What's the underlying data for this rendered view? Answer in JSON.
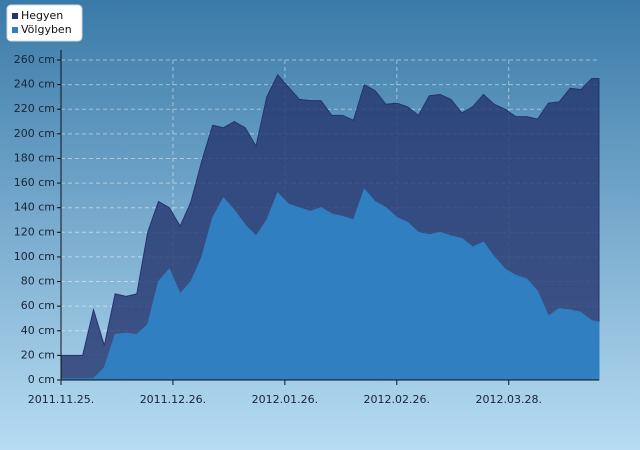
{
  "chart_data": {
    "type": "area",
    "x": [
      "2011-11-25",
      "2011-11-28",
      "2011-12-01",
      "2011-12-04",
      "2011-12-07",
      "2011-12-10",
      "2011-12-13",
      "2011-12-16",
      "2011-12-19",
      "2011-12-22",
      "2011-12-25",
      "2011-12-28",
      "2011-12-31",
      "2012-01-03",
      "2012-01-06",
      "2012-01-09",
      "2012-01-12",
      "2012-01-15",
      "2012-01-18",
      "2012-01-21",
      "2012-01-24",
      "2012-01-27",
      "2012-01-30",
      "2012-02-02",
      "2012-02-05",
      "2012-02-08",
      "2012-02-11",
      "2012-02-14",
      "2012-02-17",
      "2012-02-20",
      "2012-02-23",
      "2012-02-26",
      "2012-02-29",
      "2012-03-03",
      "2012-03-06",
      "2012-03-09",
      "2012-03-12",
      "2012-03-15",
      "2012-03-18",
      "2012-03-21",
      "2012-03-24",
      "2012-03-27",
      "2012-03-30",
      "2012-04-02",
      "2012-04-05",
      "2012-04-08",
      "2012-04-11",
      "2012-04-14",
      "2012-04-17",
      "2012-04-20",
      "2012-04-22"
    ],
    "series": [
      {
        "name": "Hegyen",
        "color": "#24346e",
        "values": [
          20,
          20,
          20,
          57,
          28,
          70,
          68,
          70,
          120,
          145,
          140,
          125,
          145,
          178,
          207,
          205,
          210,
          205,
          190,
          230,
          248,
          238,
          228,
          227,
          227,
          215,
          215,
          211,
          240,
          235,
          224,
          225,
          222,
          215,
          231,
          232,
          228,
          217,
          222,
          232,
          224,
          220,
          214,
          214,
          212,
          225,
          226,
          237,
          236,
          245,
          245
        ]
      },
      {
        "name": "Völgyben",
        "color": "#2f7fc1",
        "values": [
          1,
          1,
          1,
          1,
          10,
          37,
          38,
          37,
          45,
          80,
          90,
          70,
          80,
          100,
          132,
          148,
          138,
          126,
          117,
          130,
          152,
          143,
          140,
          137,
          140,
          135,
          133,
          130,
          155,
          145,
          140,
          132,
          128,
          120,
          118,
          120,
          117,
          115,
          108,
          112,
          100,
          90,
          85,
          82,
          72,
          52,
          58,
          57,
          55,
          48,
          47
        ]
      }
    ],
    "xlim": [
      "2011-11-25",
      "2012-04-22"
    ],
    "xticks": [
      {
        "value": "2011-11-25",
        "label": "2011.11.25."
      },
      {
        "value": "2011-12-26",
        "label": "2011.12.26."
      },
      {
        "value": "2012-01-26",
        "label": "2012.01.26."
      },
      {
        "value": "2012-02-26",
        "label": "2012.02.26."
      },
      {
        "value": "2012-03-28",
        "label": "2012.03.28."
      }
    ],
    "ylim": [
      0,
      260
    ],
    "yticks": [
      {
        "value": 0,
        "label": "0 cm"
      },
      {
        "value": 20,
        "label": "20 cm"
      },
      {
        "value": 40,
        "label": "40 cm"
      },
      {
        "value": 60,
        "label": "60 cm"
      },
      {
        "value": 80,
        "label": "80 cm"
      },
      {
        "value": 100,
        "label": "100 cm"
      },
      {
        "value": 120,
        "label": "120 cm"
      },
      {
        "value": 140,
        "label": "140 cm"
      },
      {
        "value": 160,
        "label": "160 cm"
      },
      {
        "value": 180,
        "label": "180 cm"
      },
      {
        "value": 200,
        "label": "200 cm"
      },
      {
        "value": 220,
        "label": "220 cm"
      },
      {
        "value": 240,
        "label": "240 cm"
      },
      {
        "value": 260,
        "label": "260 cm"
      }
    ],
    "grid": true,
    "legend": "top-left"
  }
}
